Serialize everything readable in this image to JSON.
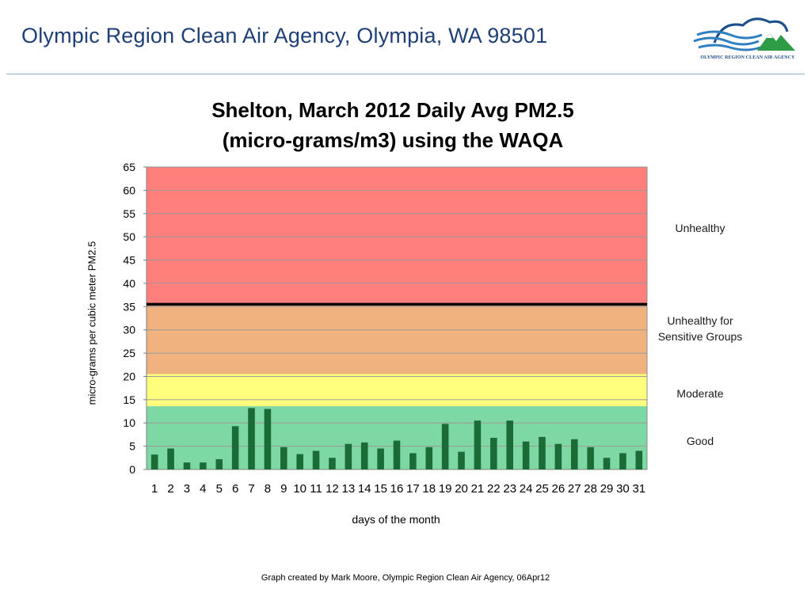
{
  "header": {
    "title": "Olympic Region Clean Air Agency, Olympia, WA 98501",
    "logo_text": "OLYMPIC REGION CLEAN AIR AGENCY"
  },
  "footer": "Graph created by Mark Moore, Olympic Region Clean Air Agency, 06Apr12",
  "chart_data": {
    "type": "bar",
    "title_line1": "Shelton, March 2012 Daily Avg PM2.5",
    "title_line2": "(micro-grams/m3) using the WAQA",
    "xlabel": "days of the month",
    "ylabel": "micro-grams per cubic meter PM2.5",
    "ylim": [
      0,
      65
    ],
    "yticks": [
      0,
      5,
      10,
      15,
      20,
      25,
      30,
      35,
      40,
      45,
      50,
      55,
      60,
      65
    ],
    "grid": true,
    "categories": [
      "1",
      "2",
      "3",
      "4",
      "5",
      "6",
      "7",
      "8",
      "9",
      "10",
      "11",
      "12",
      "13",
      "14",
      "15",
      "16",
      "17",
      "18",
      "19",
      "20",
      "21",
      "22",
      "23",
      "24",
      "25",
      "26",
      "27",
      "28",
      "29",
      "30",
      "31"
    ],
    "values": [
      3.2,
      4.5,
      1.5,
      1.5,
      2.2,
      9.3,
      13.2,
      13.0,
      4.8,
      3.3,
      4.0,
      2.5,
      5.5,
      5.8,
      4.5,
      6.2,
      3.5,
      4.8,
      9.8,
      3.8,
      10.5,
      6.8,
      10.5,
      6.0,
      7.0,
      5.5,
      6.5,
      4.8,
      2.5,
      3.5,
      4.0
    ],
    "bar_color": "#1a6b35",
    "threshold_line": 35.5,
    "zones": [
      {
        "label": "Good",
        "from": 0,
        "to": 13.6,
        "color": "#7dd8a3"
      },
      {
        "label": "Moderate",
        "from": 13.6,
        "to": 20.5,
        "color": "#ffff7d"
      },
      {
        "label": "Unhealthy for Sensitive Groups",
        "from": 20.5,
        "to": 35.5,
        "color": "#f0b380"
      },
      {
        "label": "Unhealthy",
        "from": 35.5,
        "to": 65,
        "color": "#ff7f7d"
      }
    ]
  }
}
